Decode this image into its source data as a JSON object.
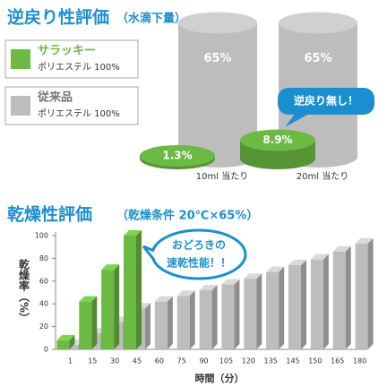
{
  "chart_data": [
    {
      "type": "cylinder",
      "title": "逆戻り性評価",
      "subtitle": "（水滴下量）",
      "categories": [
        "10ml 当たり",
        "20ml 当たり"
      ],
      "series": [
        {
          "name": "サラッキー",
          "description": "ポリエステル 100%",
          "color": "#6cb944",
          "values": [
            1.3,
            8.9
          ],
          "value_labels": [
            "1.3%",
            "8.9%"
          ]
        },
        {
          "name": "従来品",
          "description": "ポリエステル 100%",
          "color": "#bdbdbd",
          "values": [
            65,
            65
          ],
          "value_labels": [
            "65%",
            "65%"
          ]
        }
      ],
      "annotation": "逆戻り無し！"
    },
    {
      "type": "bar3d",
      "title": "乾燥性評価",
      "subtitle": "（乾燥条件 20℃×65%）",
      "y_label": "乾燥率（%）",
      "x_label": "時間（分）",
      "categories": [
        "1",
        "15",
        "30",
        "45",
        "60",
        "75",
        "90",
        "105",
        "120",
        "135",
        "145",
        "150",
        "165",
        "180"
      ],
      "series": [
        {
          "color": "#6cb944",
          "values": [
            8,
            42,
            70,
            100,
            null,
            null,
            null,
            null,
            null,
            null,
            null,
            null,
            null,
            null
          ]
        },
        {
          "color": "#bdbdbd",
          "values": [
            4,
            14,
            24,
            36,
            42,
            47,
            52,
            57,
            62,
            68,
            74,
            79,
            86,
            93
          ]
        }
      ],
      "ylim": [
        0,
        100
      ],
      "yticks": [
        0,
        20,
        40,
        60,
        80,
        100
      ],
      "annotation": [
        "おどろきの",
        "速乾性能！！"
      ]
    }
  ]
}
